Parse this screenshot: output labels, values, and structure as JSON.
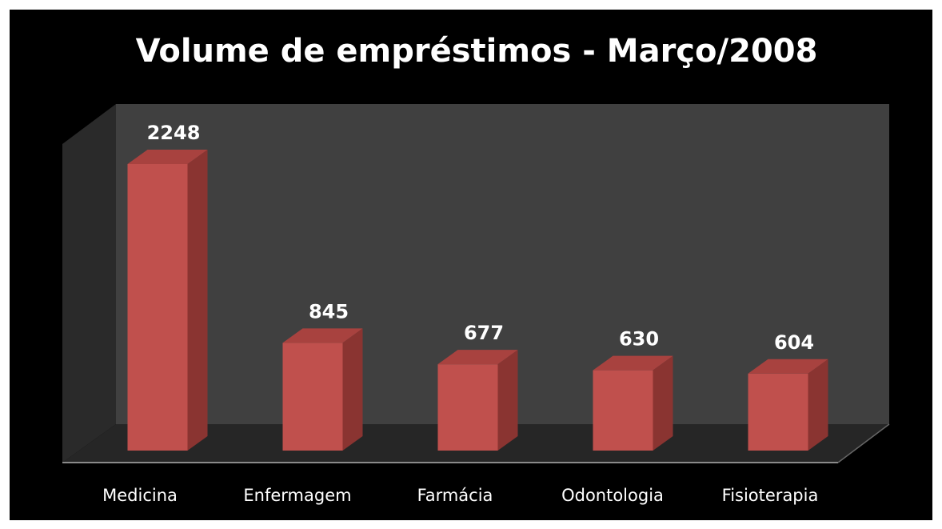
{
  "chart_data": {
    "type": "bar3d",
    "title": "Volume de empréstimos - Março/2008",
    "categories": [
      "Medicina",
      "Enfermagem",
      "Farmácia",
      "Odontologia",
      "Fisioterapia"
    ],
    "values": [
      2248,
      845,
      677,
      630,
      604
    ],
    "color": "#c0504d"
  }
}
